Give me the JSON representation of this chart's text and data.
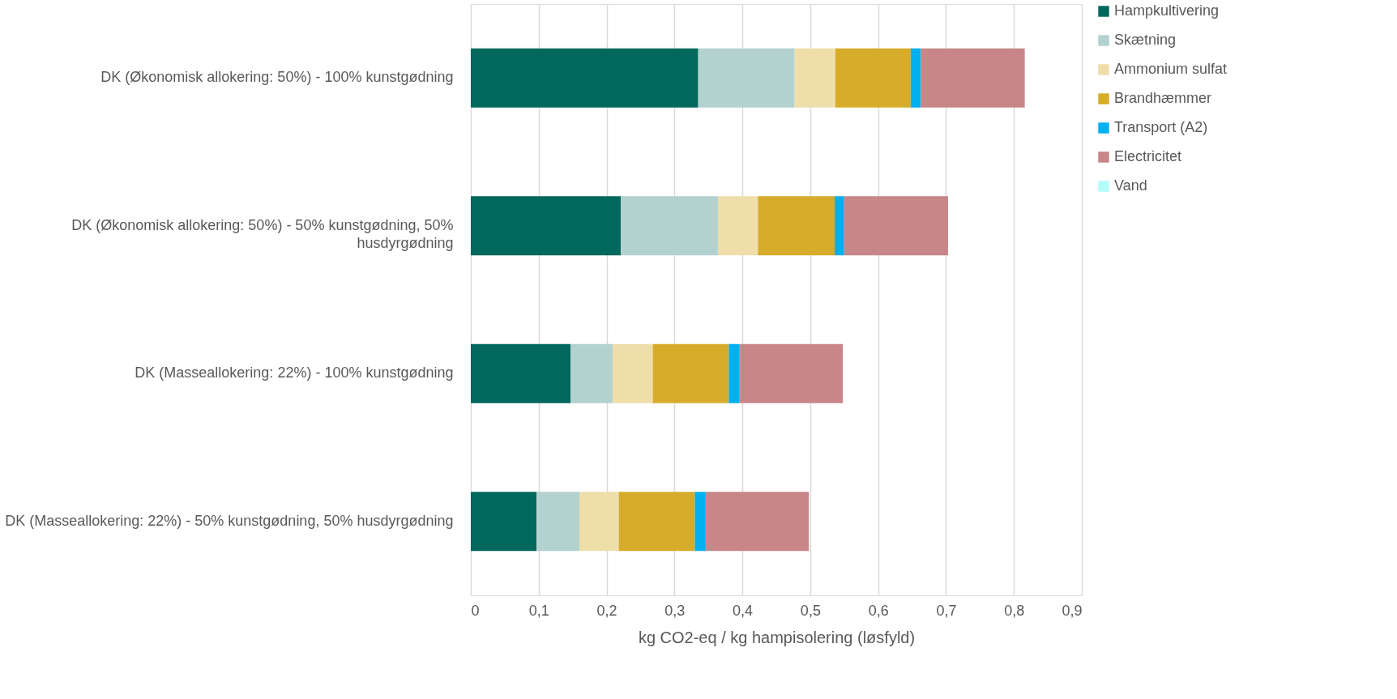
{
  "chart_data": {
    "type": "bar",
    "orientation": "horizontal",
    "stacked": true,
    "xlabel": "kg CO2-eq / kg hampisolering (løsfyld)",
    "categories": [
      "DK (Økonomisk allokering: 50%) - 100% kunstgødning",
      "DK (Økonomisk allokering: 50%) - 50% kunstgødning, 50% husdyrgødning",
      "DK (Masseallokering: 22%) - 100% kunstgødning",
      "DK (Masseallokering: 22%) - 50% kunstgødning, 50% husdyrgødning"
    ],
    "series": [
      {
        "name": "Hampkultivering",
        "color": "#02675c",
        "values": [
          0.335,
          0.221,
          0.147,
          0.097
        ]
      },
      {
        "name": "Skætning",
        "color": "#b2d1cf",
        "values": [
          0.142,
          0.143,
          0.062,
          0.063
        ]
      },
      {
        "name": "Ammonium sulfat",
        "color": "#efdeaa",
        "values": [
          0.06,
          0.059,
          0.059,
          0.058
        ]
      },
      {
        "name": "Brandhæmmer",
        "color": "#d6ac2a",
        "values": [
          0.111,
          0.113,
          0.112,
          0.112
        ]
      },
      {
        "name": "Transport (A2)",
        "color": "#00b0f0",
        "values": [
          0.015,
          0.014,
          0.016,
          0.016
        ]
      },
      {
        "name": "Electricitet",
        "color": "#c88689",
        "values": [
          0.153,
          0.153,
          0.152,
          0.152
        ]
      },
      {
        "name": "Vand",
        "color": "#b3fcf7",
        "values": [
          0,
          0,
          0,
          0
        ]
      }
    ],
    "xlim": [
      0,
      0.9
    ],
    "xticks": [
      0,
      {
        "value": 0.1,
        "label": "0,1"
      },
      {
        "value": 0.2,
        "label": "0,2"
      },
      {
        "value": 0.3,
        "label": "0,3"
      },
      {
        "value": 0.4,
        "label": "0,4"
      },
      {
        "value": 0.5,
        "label": "0,5"
      },
      {
        "value": 0.6,
        "label": "0,6"
      },
      {
        "value": 0.7,
        "label": "0,7"
      },
      {
        "value": 0.8,
        "label": "0,8"
      },
      {
        "value": 0.9,
        "label": "0,9"
      }
    ],
    "grid": "x",
    "legend": "right"
  }
}
